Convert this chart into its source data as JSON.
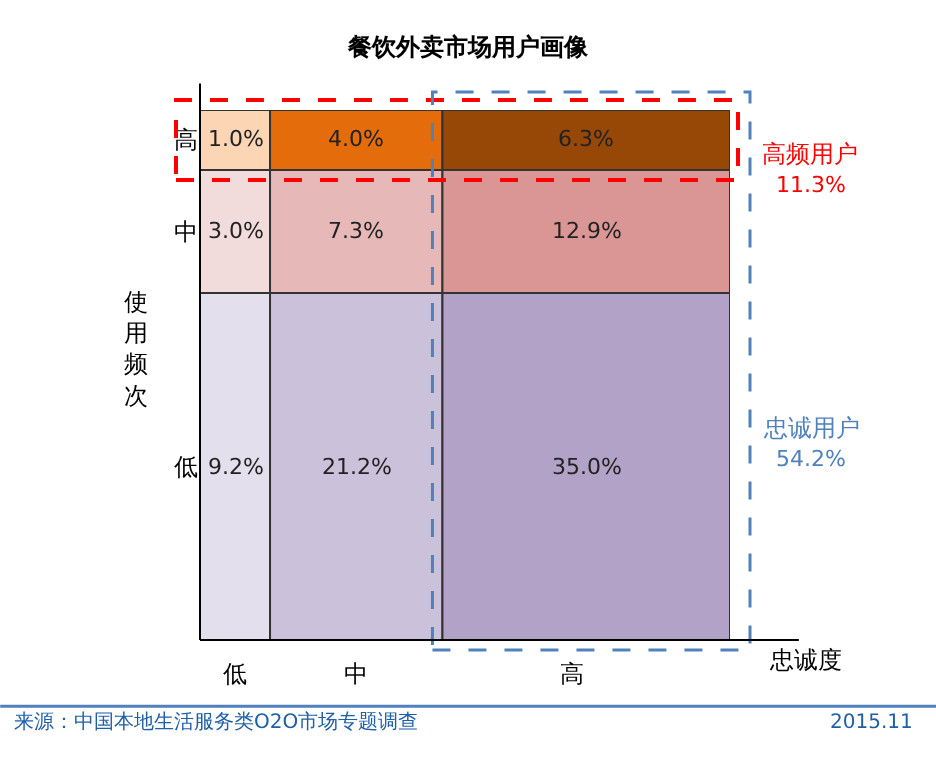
{
  "chart_data": {
    "type": "other",
    "title": "餐饮外卖市场用户画像",
    "xlabel": "忠诚度",
    "ylabel": "使用频次",
    "categories": [
      "低",
      "中",
      "高"
    ],
    "series": [
      {
        "name": "高",
        "values": [
          1.0,
          4.0,
          6.3
        ],
        "value_labels": [
          "1.0%",
          "4.0%",
          "6.3%"
        ],
        "colors": [
          "#fcd5b4",
          "#e46c0a",
          "#974806"
        ]
      },
      {
        "name": "中",
        "values": [
          3.0,
          7.3,
          12.9
        ],
        "value_labels": [
          "3.0%",
          "7.3%",
          "12.9%"
        ],
        "colors": [
          "#f2dcdb",
          "#e6b9b8",
          "#d99694"
        ]
      },
      {
        "name": "低",
        "values": [
          9.2,
          21.2,
          35.0
        ],
        "value_labels": [
          "9.2%",
          "21.2%",
          "35.0%"
        ],
        "colors": [
          "#e4dfec",
          "#ccc1da",
          "#b3a2c7"
        ]
      }
    ],
    "annotations": [
      "高频用户",
      "11.3%",
      "忠诚用户",
      "54.2%",
      "来源：中国本地生活服务类O2O市场专题调查",
      "2015.11"
    ]
  }
}
